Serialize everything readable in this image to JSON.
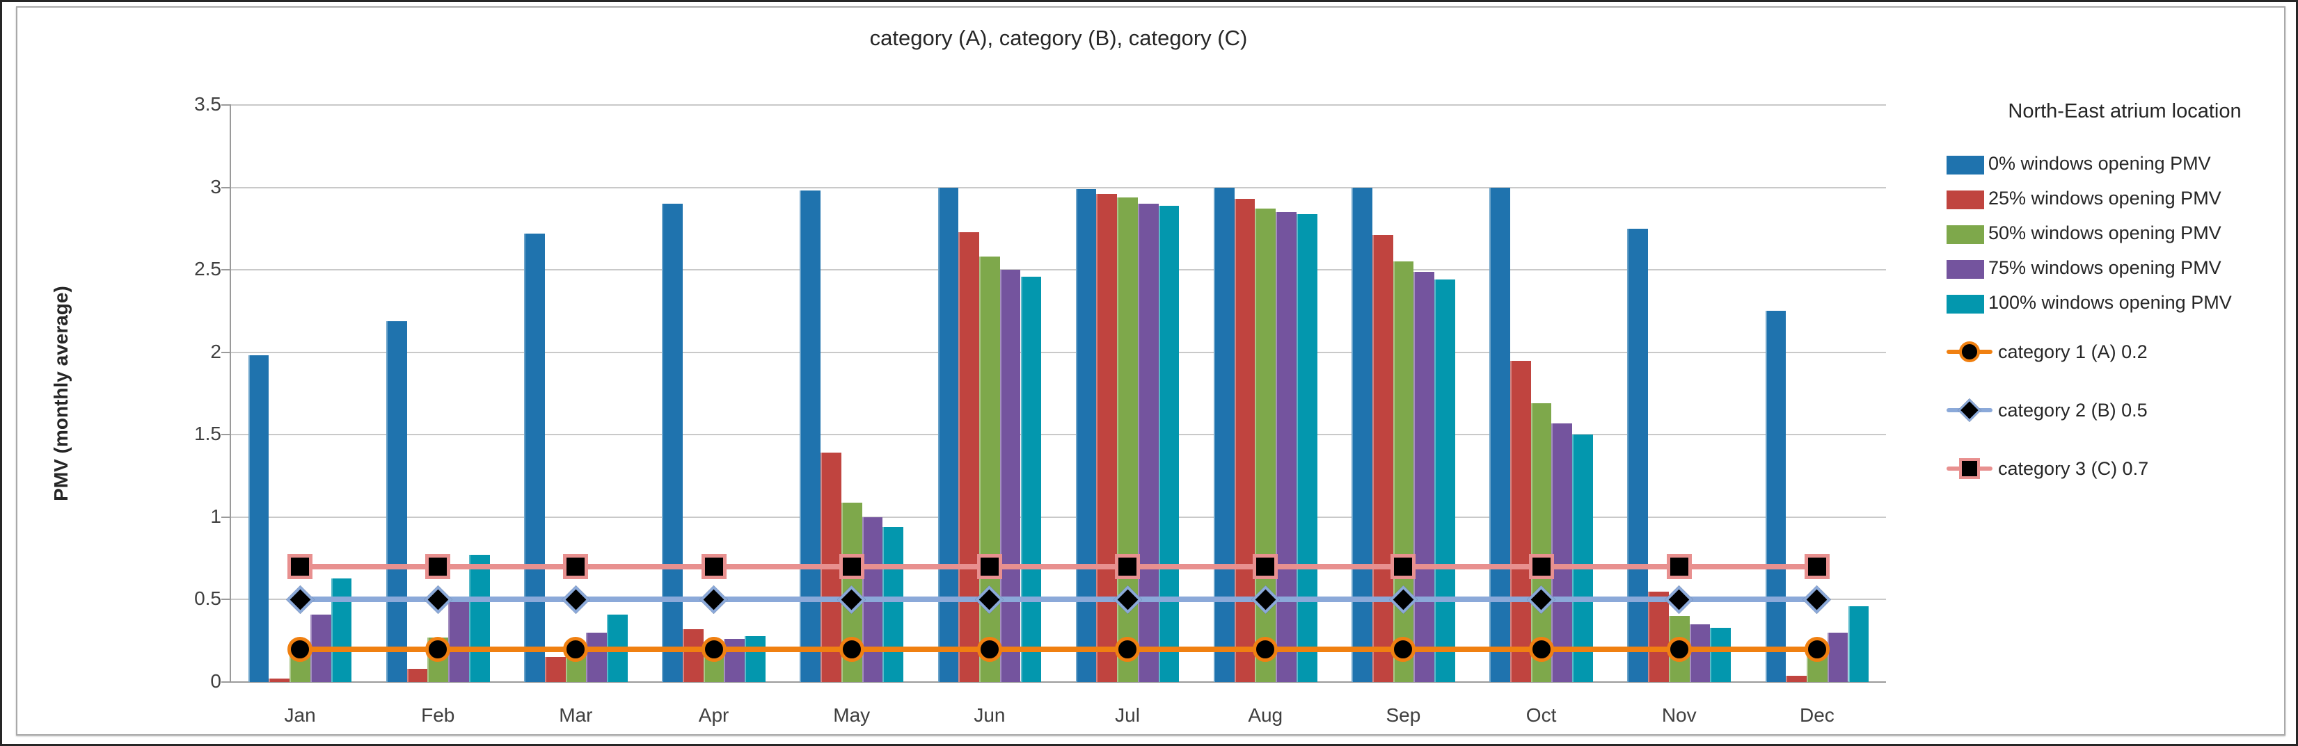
{
  "chart_data": {
    "type": "bar",
    "title": "category (A), category (B), category (C)",
    "ylabel": "PMV (monthly average)",
    "legend_title": "North-East atrium location",
    "legend_position": "right",
    "grid": true,
    "ylim": [
      0,
      3.5
    ],
    "ytick_step": 0.5,
    "ytick_labels": [
      "0",
      "0.5",
      "1",
      "1.5",
      "2",
      "2.5",
      "3",
      "3.5"
    ],
    "categories": [
      "Jan",
      "Feb",
      "Mar",
      "Apr",
      "May",
      "Jun",
      "Jul",
      "Aug",
      "Sep",
      "Oct",
      "Nov",
      "Dec"
    ],
    "series": [
      {
        "name": "0% windows opening PMV",
        "color": "#1F73AE",
        "values": [
          1.98,
          2.19,
          2.72,
          2.9,
          2.98,
          3.0,
          2.99,
          3.0,
          3.0,
          3.0,
          2.75,
          2.25
        ]
      },
      {
        "name": "25% windows opening PMV",
        "color": "#C0443F",
        "values": [
          0.02,
          0.08,
          0.15,
          0.32,
          1.39,
          2.73,
          2.96,
          2.93,
          2.71,
          1.95,
          0.55,
          0.04
        ]
      },
      {
        "name": "50% windows opening PMV",
        "color": "#7EA84B",
        "values": [
          0.18,
          0.27,
          0.19,
          0.22,
          1.09,
          2.58,
          2.94,
          2.87,
          2.55,
          1.69,
          0.4,
          0.19
        ]
      },
      {
        "name": "75% windows opening PMV",
        "color": "#74549E",
        "values": [
          0.41,
          0.5,
          0.3,
          0.26,
          1.0,
          2.5,
          2.9,
          2.85,
          2.49,
          1.57,
          0.35,
          0.3
        ]
      },
      {
        "name": "100% windows opening PMV",
        "color": "#0397AE",
        "values": [
          0.63,
          0.77,
          0.41,
          0.28,
          0.94,
          2.46,
          2.89,
          2.84,
          2.44,
          1.5,
          0.33,
          0.46
        ]
      }
    ],
    "ref_lines": [
      {
        "name": "category 1 (A) 0.2",
        "value": 0.2,
        "color": "#F08011",
        "marker": "circle",
        "marker_color": "#000000"
      },
      {
        "name": "category 2 (B) 0.5",
        "value": 0.5,
        "color": "#8BA9D9",
        "marker": "diamond",
        "marker_color": "#000000"
      },
      {
        "name": "category 3 (C) 0.7",
        "value": 0.7,
        "color": "#E8908F",
        "marker": "square",
        "marker_color": "#000000"
      }
    ]
  }
}
